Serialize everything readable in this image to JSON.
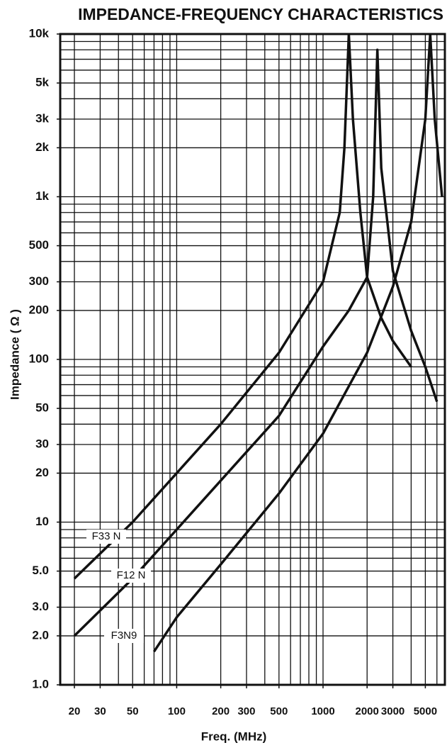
{
  "chart_data": {
    "type": "line",
    "title": "IMPEDANCE-FREQUENCY CHARACTERISTICS",
    "x_label": "Freq. (MHz)",
    "y_label": "Impedance ( Ω )",
    "log_x": true,
    "log_y": true,
    "grid": true,
    "xlim": [
      16,
      6800
    ],
    "ylim": [
      1,
      10000
    ],
    "xticks": [
      20,
      30,
      50,
      100,
      200,
      300,
      500,
      1000,
      2000,
      3000,
      5000
    ],
    "yticks": [
      {
        "value": 1,
        "label": "1.0"
      },
      {
        "value": 2,
        "label": "2.0"
      },
      {
        "value": 3,
        "label": "3.0"
      },
      {
        "value": 5,
        "label": "5.0"
      },
      10,
      20,
      30,
      50,
      100,
      200,
      300,
      500,
      {
        "value": 1000,
        "label": "1k"
      },
      {
        "value": 2000,
        "label": "2k"
      },
      {
        "value": 3000,
        "label": "3k"
      },
      {
        "value": 5000,
        "label": "5k"
      },
      {
        "value": 10000,
        "label": "10k"
      }
    ],
    "xgrid": [
      20,
      30,
      40,
      50,
      60,
      70,
      80,
      90,
      100,
      200,
      300,
      400,
      500,
      600,
      700,
      800,
      900,
      1000,
      2000,
      3000,
      4000,
      5000,
      6000
    ],
    "ygrid": [
      2,
      3,
      4,
      5,
      6,
      7,
      8,
      9,
      10,
      20,
      30,
      40,
      50,
      60,
      70,
      80,
      90,
      100,
      200,
      300,
      400,
      500,
      600,
      700,
      800,
      900,
      1000,
      2000,
      3000,
      4000,
      5000,
      6000,
      7000,
      8000,
      9000
    ],
    "series": [
      {
        "name": "F33 N",
        "color": "#111111",
        "x": [
          20,
          50,
          100,
          200,
          500,
          1000,
          1300,
          1400,
          1500,
          1600,
          1800,
          2000,
          2500,
          3000,
          4000
        ],
        "values": [
          4.5,
          10,
          20,
          40,
          110,
          300,
          800,
          2000,
          10000,
          3000,
          800,
          320,
          180,
          130,
          90
        ]
      },
      {
        "name": "F12 N",
        "color": "#111111",
        "x": [
          20,
          50,
          100,
          200,
          500,
          1000,
          1500,
          2000,
          2200,
          2350,
          2500,
          3000,
          4000,
          5000,
          6000
        ],
        "values": [
          2.0,
          4.5,
          9,
          18,
          45,
          120,
          200,
          320,
          1000,
          8000,
          1500,
          350,
          150,
          90,
          55
        ]
      },
      {
        "name": "F3N9",
        "color": "#111111",
        "x": [
          70,
          100,
          200,
          500,
          1000,
          2000,
          3000,
          4000,
          5000,
          5400,
          5800,
          6500
        ],
        "values": [
          1.6,
          2.6,
          5.5,
          15,
          35,
          110,
          280,
          700,
          3000,
          10000,
          3000,
          1000
        ]
      }
    ]
  }
}
